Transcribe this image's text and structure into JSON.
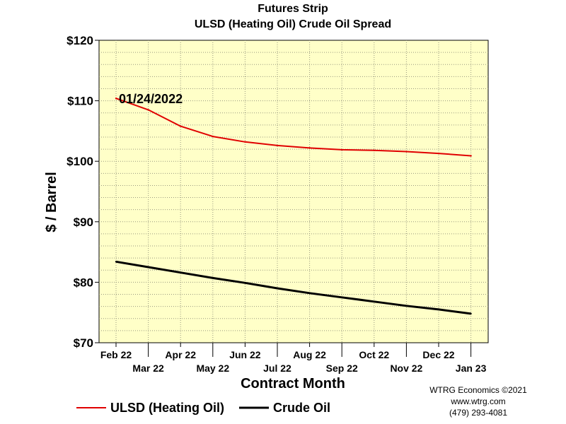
{
  "chart_data": {
    "type": "line",
    "title": "Futures Strip",
    "subtitle": "ULSD (Heating Oil) Crude Oil Spread",
    "xlabel": "Contract Month",
    "ylabel": "$ / Barrel",
    "categories": [
      "Feb 22",
      "Mar 22",
      "Apr 22",
      "May 22",
      "Jun 22",
      "Jul 22",
      "Aug 22",
      "Sep 22",
      "Oct 22",
      "Nov 22",
      "Dec 22",
      "Jan 23"
    ],
    "yticks": [
      70,
      80,
      90,
      100,
      110,
      120
    ],
    "ytick_labels": [
      "$70",
      "$80",
      "$90",
      "$100",
      "$110",
      "$120"
    ],
    "ylim": [
      70,
      120
    ],
    "grid": true,
    "legend_position": "bottom-left",
    "annotation": "01/24/2022",
    "plot_background": "#ffffc8",
    "series": [
      {
        "name": "ULSD (Heating Oil)",
        "color": "#e00000",
        "values": [
          110.4,
          108.5,
          105.8,
          104.1,
          103.2,
          102.6,
          102.2,
          101.9,
          101.8,
          101.6,
          101.3,
          100.9
        ]
      },
      {
        "name": "Crude Oil",
        "color": "#000000",
        "values": [
          83.4,
          82.5,
          81.6,
          80.7,
          79.9,
          79.0,
          78.2,
          77.5,
          76.8,
          76.1,
          75.5,
          74.8
        ]
      }
    ]
  },
  "credits": {
    "line1": "WTRG Economics ©2021",
    "line2": "www.wtrg.com",
    "line3": "(479) 293-4081"
  }
}
